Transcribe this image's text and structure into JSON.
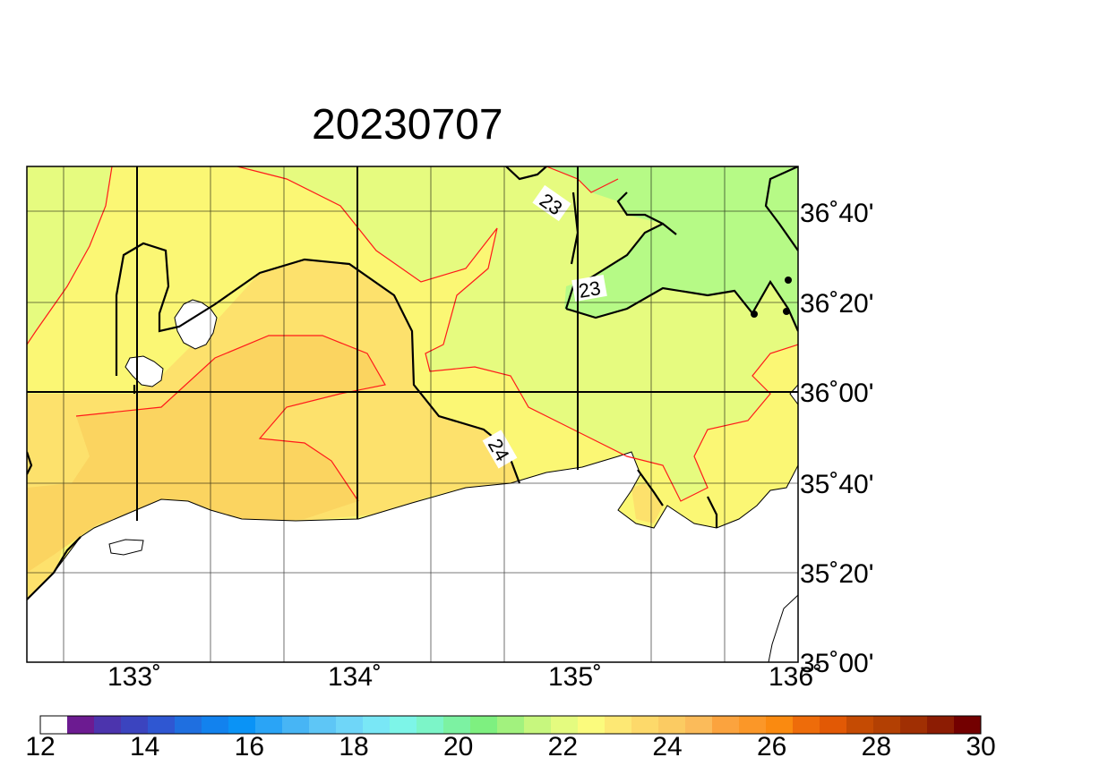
{
  "title": "20230707",
  "map": {
    "lon_labels": [
      "133˚",
      "134˚",
      "135˚",
      "136˚"
    ],
    "lat_labels": [
      "36˚40'",
      "36˚20'",
      "36˚00'",
      "35˚40'",
      "35˚20'",
      "35˚00'"
    ],
    "lon_range": [
      132.5,
      136.0
    ],
    "lat_range": [
      35.0,
      36.833
    ],
    "contour_labels": [
      "23",
      "23",
      "24"
    ]
  },
  "colorbar": {
    "min": 12,
    "max": 30,
    "labels": [
      "12",
      "14",
      "16",
      "18",
      "20",
      "22",
      "24",
      "26",
      "28",
      "30"
    ],
    "colors": [
      "#ffffff",
      "#6c1b91",
      "#4c34ad",
      "#3b44bf",
      "#2f57d2",
      "#1f6fe0",
      "#1282ee",
      "#0a93f6",
      "#2aa4f6",
      "#47b5f5",
      "#5ec6f6",
      "#6fd6f8",
      "#79e7f6",
      "#7df5e8",
      "#7cf5c8",
      "#7cf2a2",
      "#7ef080",
      "#a2f27e",
      "#c7f77e",
      "#e4fb7f",
      "#fbfb7d",
      "#fde874",
      "#fdd96a",
      "#fbcb62",
      "#fbbb5a",
      "#fba33e",
      "#fb9728",
      "#fa8a10",
      "#ee6c0a",
      "#e25905",
      "#c54b03",
      "#b34003",
      "#a02f03",
      "#8c1c03",
      "#730000"
    ]
  }
}
